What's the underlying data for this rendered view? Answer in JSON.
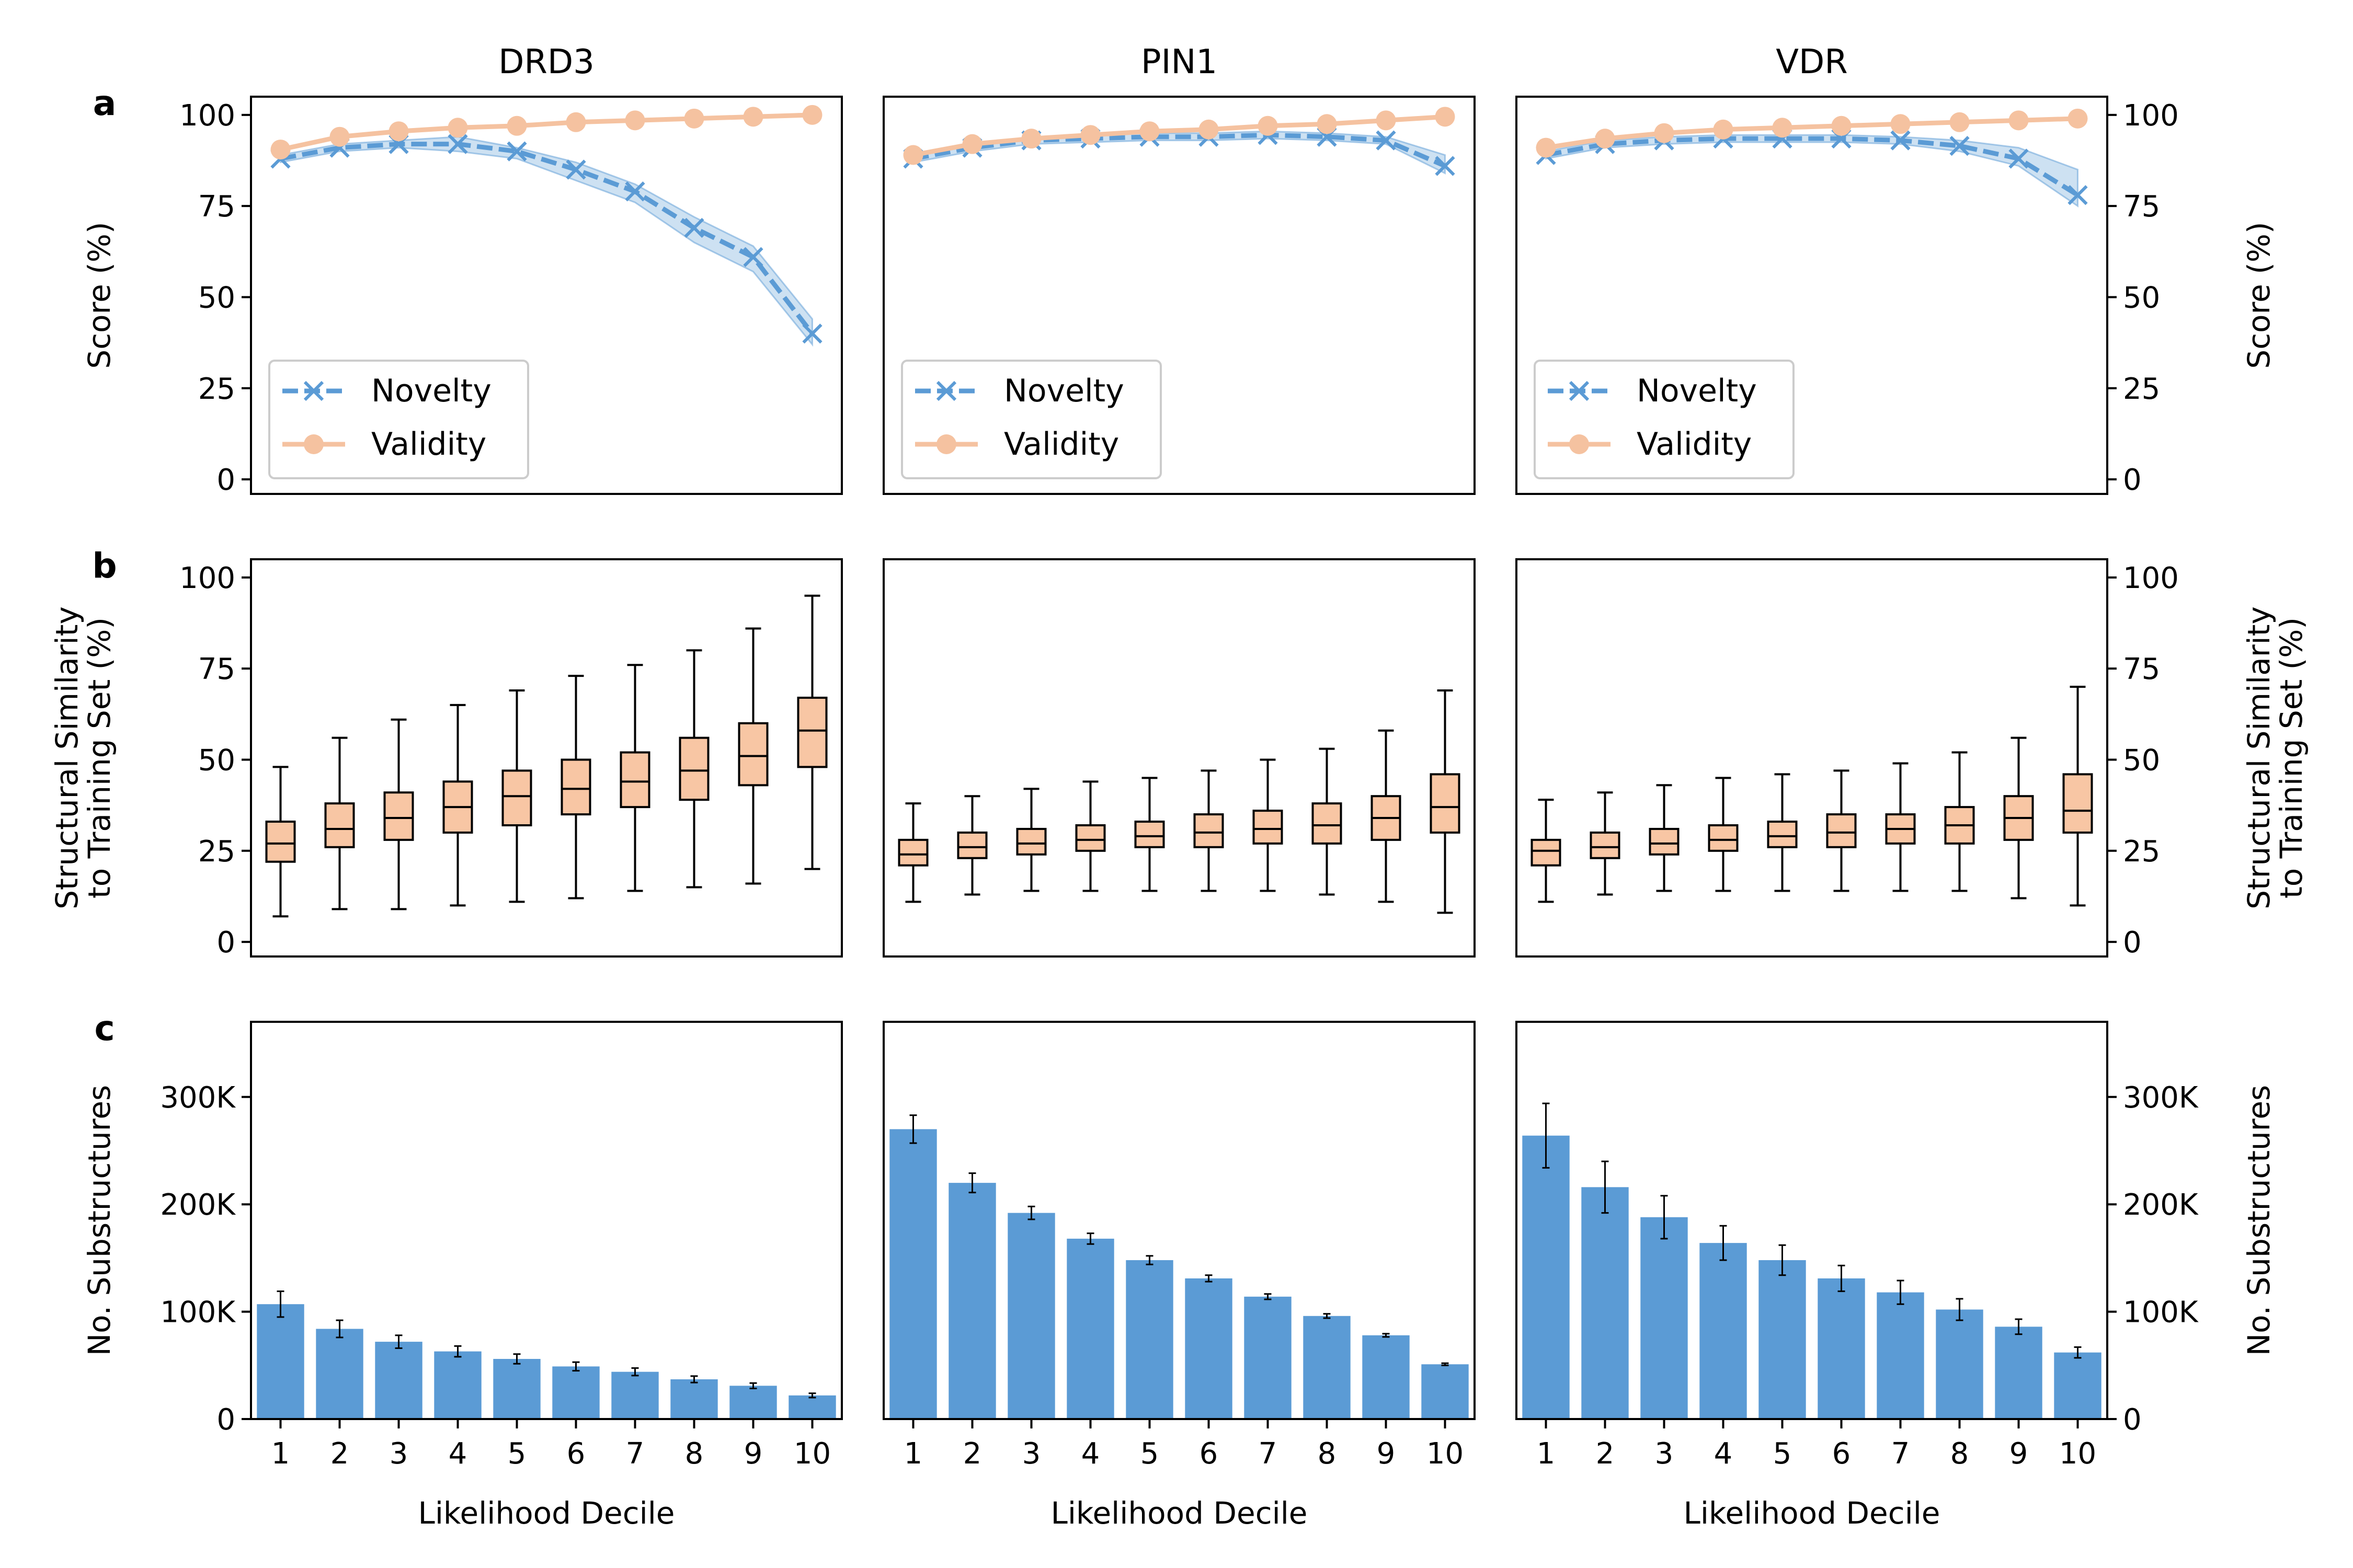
{
  "columns": [
    "DRD3",
    "PIN1",
    "VDR"
  ],
  "panel_labels": [
    "a",
    "b",
    "c"
  ],
  "colors": {
    "novelty": "#5b9bd5",
    "validity": "#f5c2a0",
    "box_fill": "#f8c6a4",
    "bar": "#5b9bd5"
  },
  "chart_data": [
    {
      "panel": "a",
      "type": "line",
      "ylabel": "Score (%)",
      "ylim": [
        -4,
        105
      ],
      "yticks": [
        0,
        25,
        50,
        75,
        100
      ],
      "x": [
        1,
        2,
        3,
        4,
        5,
        6,
        7,
        8,
        9,
        10
      ],
      "legend": {
        "placement": "lower-left",
        "labels": [
          "Novelty",
          "Validity"
        ]
      },
      "series_by_target": [
        {
          "target": "DRD3",
          "novelty": [
            88,
            91,
            92,
            92,
            90,
            85,
            79,
            69,
            61,
            40
          ],
          "novelty_band": [
            [
              87,
              89
            ],
            [
              90,
              92
            ],
            [
              91,
              93
            ],
            [
              90,
              94
            ],
            [
              88,
              91
            ],
            [
              82,
              87
            ],
            [
              76,
              81
            ],
            [
              65,
              72
            ],
            [
              57,
              64
            ],
            [
              37,
              44
            ]
          ],
          "validity": [
            90.5,
            94,
            95.5,
            96.5,
            97,
            98,
            98.5,
            99,
            99.5,
            100
          ]
        },
        {
          "target": "PIN1",
          "novelty": [
            88,
            91,
            93,
            93.5,
            94,
            94,
            94.5,
            94,
            93,
            86
          ],
          "novelty_band": [
            [
              87,
              89
            ],
            [
              90,
              92
            ],
            [
              92,
              94
            ],
            [
              92.5,
              94.5
            ],
            [
              93,
              95
            ],
            [
              93,
              95
            ],
            [
              93.5,
              95.5
            ],
            [
              93,
              95
            ],
            [
              92,
              94
            ],
            [
              84,
              89
            ]
          ],
          "validity": [
            89,
            92,
            93.5,
            94.5,
            95.5,
            96,
            97,
            97.5,
            98.5,
            99.5
          ]
        },
        {
          "target": "VDR",
          "novelty": [
            89,
            92,
            93,
            93.5,
            93.5,
            93.5,
            93,
            91.5,
            88,
            78
          ],
          "novelty_band": [
            [
              88,
              90
            ],
            [
              91,
              93
            ],
            [
              92,
              94
            ],
            [
              92.5,
              94.5
            ],
            [
              92.5,
              94.5
            ],
            [
              92.5,
              94.5
            ],
            [
              92,
              94
            ],
            [
              90,
              93
            ],
            [
              86,
              91
            ],
            [
              75,
              85
            ]
          ],
          "validity": [
            91,
            93.5,
            95,
            96,
            96.5,
            97,
            97.5,
            98,
            98.5,
            99
          ]
        }
      ]
    },
    {
      "panel": "b",
      "type": "box",
      "ylabel": [
        "Structural Similarity",
        "to Training Set (%)"
      ],
      "ylim": [
        -4,
        105
      ],
      "yticks": [
        0,
        25,
        50,
        75,
        100
      ],
      "categories": [
        "1",
        "2",
        "3",
        "4",
        "5",
        "6",
        "7",
        "8",
        "9",
        "10"
      ],
      "boxes_by_target": [
        {
          "target": "DRD3",
          "boxes": [
            {
              "min": 7,
              "q1": 22,
              "median": 27,
              "q3": 33,
              "max": 48
            },
            {
              "min": 9,
              "q1": 26,
              "median": 31,
              "q3": 38,
              "max": 56
            },
            {
              "min": 9,
              "q1": 28,
              "median": 34,
              "q3": 41,
              "max": 61
            },
            {
              "min": 10,
              "q1": 30,
              "median": 37,
              "q3": 44,
              "max": 65
            },
            {
              "min": 11,
              "q1": 32,
              "median": 40,
              "q3": 47,
              "max": 69
            },
            {
              "min": 12,
              "q1": 35,
              "median": 42,
              "q3": 50,
              "max": 73
            },
            {
              "min": 14,
              "q1": 37,
              "median": 44,
              "q3": 52,
              "max": 76
            },
            {
              "min": 15,
              "q1": 39,
              "median": 47,
              "q3": 56,
              "max": 80
            },
            {
              "min": 16,
              "q1": 43,
              "median": 51,
              "q3": 60,
              "max": 86
            },
            {
              "min": 20,
              "q1": 48,
              "median": 58,
              "q3": 67,
              "max": 95
            }
          ]
        },
        {
          "target": "PIN1",
          "boxes": [
            {
              "min": 11,
              "q1": 21,
              "median": 24,
              "q3": 28,
              "max": 38
            },
            {
              "min": 13,
              "q1": 23,
              "median": 26,
              "q3": 30,
              "max": 40
            },
            {
              "min": 14,
              "q1": 24,
              "median": 27,
              "q3": 31,
              "max": 42
            },
            {
              "min": 14,
              "q1": 25,
              "median": 28,
              "q3": 32,
              "max": 44
            },
            {
              "min": 14,
              "q1": 26,
              "median": 29,
              "q3": 33,
              "max": 45
            },
            {
              "min": 14,
              "q1": 26,
              "median": 30,
              "q3": 35,
              "max": 47
            },
            {
              "min": 14,
              "q1": 27,
              "median": 31,
              "q3": 36,
              "max": 50
            },
            {
              "min": 13,
              "q1": 27,
              "median": 32,
              "q3": 38,
              "max": 53
            },
            {
              "min": 11,
              "q1": 28,
              "median": 34,
              "q3": 40,
              "max": 58
            },
            {
              "min": 8,
              "q1": 30,
              "median": 37,
              "q3": 46,
              "max": 69
            }
          ]
        },
        {
          "target": "VDR",
          "boxes": [
            {
              "min": 11,
              "q1": 21,
              "median": 25,
              "q3": 28,
              "max": 39
            },
            {
              "min": 13,
              "q1": 23,
              "median": 26,
              "q3": 30,
              "max": 41
            },
            {
              "min": 14,
              "q1": 24,
              "median": 27,
              "q3": 31,
              "max": 43
            },
            {
              "min": 14,
              "q1": 25,
              "median": 28,
              "q3": 32,
              "max": 45
            },
            {
              "min": 14,
              "q1": 26,
              "median": 29,
              "q3": 33,
              "max": 46
            },
            {
              "min": 14,
              "q1": 26,
              "median": 30,
              "q3": 35,
              "max": 47
            },
            {
              "min": 14,
              "q1": 27,
              "median": 31,
              "q3": 35,
              "max": 49
            },
            {
              "min": 14,
              "q1": 27,
              "median": 32,
              "q3": 37,
              "max": 52
            },
            {
              "min": 12,
              "q1": 28,
              "median": 34,
              "q3": 40,
              "max": 56
            },
            {
              "min": 10,
              "q1": 30,
              "median": 36,
              "q3": 46,
              "max": 70
            }
          ]
        }
      ]
    },
    {
      "panel": "c",
      "type": "bar",
      "xlabel": "Likelihood Decile",
      "ylabel": "No. Substructures",
      "ylim": [
        0,
        370000
      ],
      "yticks": [
        0,
        100000,
        200000,
        300000
      ],
      "yticklabels": [
        "0",
        "100K",
        "200K",
        "300K"
      ],
      "categories": [
        "1",
        "2",
        "3",
        "4",
        "5",
        "6",
        "7",
        "8",
        "9",
        "10"
      ],
      "bars_by_target": [
        {
          "target": "DRD3",
          "values": [
            107000,
            84000,
            72000,
            63000,
            56000,
            49000,
            44000,
            37000,
            31000,
            22000
          ],
          "errors": [
            12000,
            8000,
            6000,
            5000,
            4500,
            4000,
            3500,
            3000,
            2500,
            2000
          ]
        },
        {
          "target": "PIN1",
          "values": [
            270000,
            220000,
            192000,
            168000,
            148000,
            131000,
            114000,
            96000,
            78000,
            51000
          ],
          "errors": [
            13000,
            9000,
            6000,
            5000,
            4000,
            3000,
            2500,
            2000,
            1500,
            1000
          ]
        },
        {
          "target": "VDR",
          "values": [
            264000,
            216000,
            188000,
            164000,
            148000,
            131000,
            118000,
            102000,
            86000,
            62000
          ],
          "errors": [
            30000,
            24000,
            20000,
            16000,
            14000,
            12000,
            11000,
            10000,
            7000,
            5000
          ]
        }
      ]
    }
  ]
}
